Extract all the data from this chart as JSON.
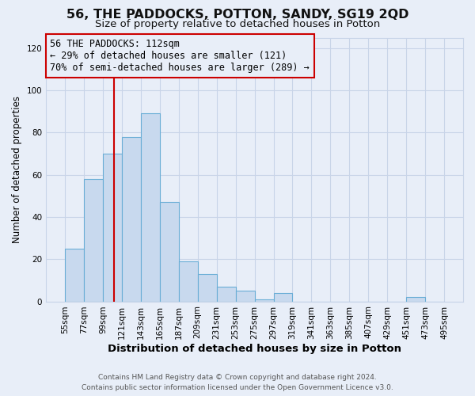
{
  "title": "56, THE PADDOCKS, POTTON, SANDY, SG19 2QD",
  "subtitle": "Size of property relative to detached houses in Potton",
  "xlabel": "Distribution of detached houses by size in Potton",
  "ylabel": "Number of detached properties",
  "bin_edges": [
    55,
    77,
    99,
    121,
    143,
    165,
    187,
    209,
    231,
    253,
    275,
    297,
    319,
    341,
    363,
    385,
    407,
    429,
    451,
    473,
    495
  ],
  "bar_heights": [
    25,
    58,
    70,
    78,
    89,
    47,
    19,
    13,
    7,
    5,
    1,
    4,
    0,
    0,
    0,
    0,
    0,
    0,
    2,
    0
  ],
  "bar_color": "#c8d9ee",
  "bar_edge_color": "#6aaed6",
  "vline_x": 112,
  "vline_color": "#cc0000",
  "annotation_line1": "56 THE PADDOCKS: 112sqm",
  "annotation_line2": "← 29% of detached houses are smaller (121)",
  "annotation_line3": "70% of semi-detached houses are larger (289) →",
  "annotation_box_color": "#cc0000",
  "tick_labels": [
    "55sqm",
    "77sqm",
    "99sqm",
    "121sqm",
    "143sqm",
    "165sqm",
    "187sqm",
    "209sqm",
    "231sqm",
    "253sqm",
    "275sqm",
    "297sqm",
    "319sqm",
    "341sqm",
    "363sqm",
    "385sqm",
    "407sqm",
    "429sqm",
    "451sqm",
    "473sqm",
    "495sqm"
  ],
  "ylim": [
    0,
    125
  ],
  "yticks": [
    0,
    20,
    40,
    60,
    80,
    100,
    120
  ],
  "grid_color": "#c8d4e8",
  "bg_color": "#e8eef8",
  "plot_bg": "#e8eef8",
  "footer_line1": "Contains HM Land Registry data © Crown copyright and database right 2024.",
  "footer_line2": "Contains public sector information licensed under the Open Government Licence v3.0.",
  "title_fontsize": 11.5,
  "subtitle_fontsize": 9.5,
  "xlabel_fontsize": 9.5,
  "ylabel_fontsize": 8.5,
  "tick_fontsize": 7.5,
  "annot_fontsize": 8.5,
  "footer_fontsize": 6.5
}
